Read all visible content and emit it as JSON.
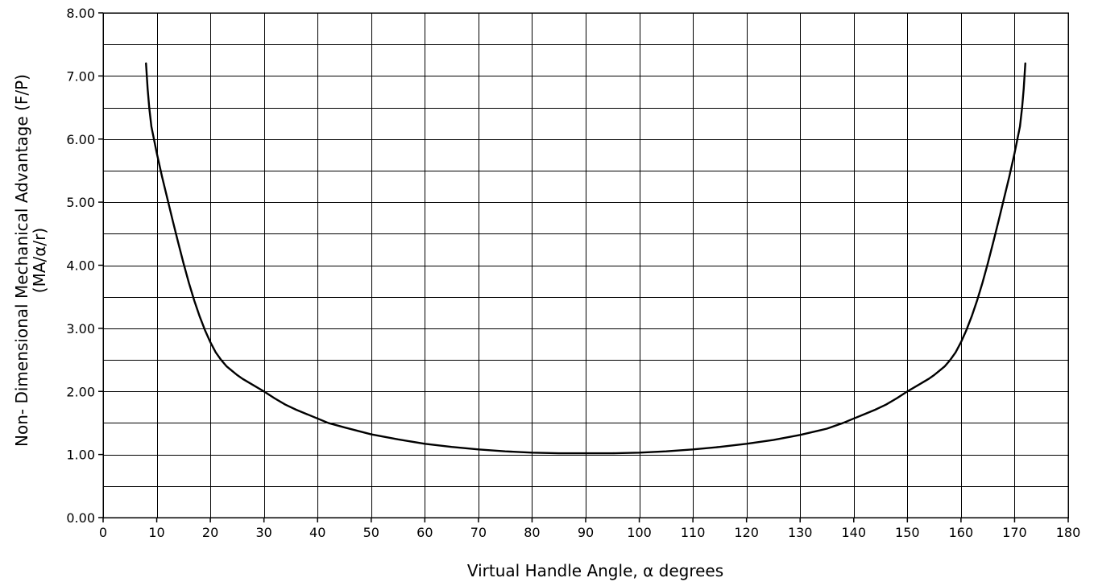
{
  "chart_data": {
    "type": "line",
    "title": "",
    "xlabel": "Virtual Handle Angle,  α   degrees",
    "ylabel_line1": "Non- Dimensional Mechanical Advantage (F/P)",
    "ylabel_line2": "(MA/α/r)",
    "xlim": [
      0,
      180
    ],
    "ylim": [
      0,
      8
    ],
    "grid": true,
    "legend": "none",
    "colors": {
      "line": "#000000",
      "grid": "#000000",
      "background": "#ffffff"
    },
    "x_ticks": [
      "0",
      "10",
      "20",
      "30",
      "40",
      "50",
      "60",
      "70",
      "80",
      "90",
      "100",
      "110",
      "120",
      "130",
      "140",
      "150",
      "160",
      "170",
      "180"
    ],
    "y_ticks": [
      "0.00",
      "1.00",
      "2.00",
      "3.00",
      "4.00",
      "5.00",
      "6.00",
      "7.00",
      "8.00"
    ],
    "series": [
      {
        "x": [
          8,
          8.3,
          8.6,
          9,
          10,
          11,
          12,
          13,
          14,
          15,
          16,
          17,
          18,
          19,
          20,
          21,
          22,
          23,
          24,
          25,
          26,
          28,
          30,
          32,
          34,
          36,
          38,
          40,
          42,
          45,
          50,
          55,
          60,
          65,
          70,
          75,
          80,
          85,
          90,
          95,
          100,
          105,
          110,
          115,
          120,
          125,
          130,
          135,
          138,
          140,
          142,
          144,
          146,
          148,
          150,
          152,
          154,
          155,
          156,
          157,
          158,
          159,
          160,
          161,
          162,
          163,
          164,
          165,
          166,
          167,
          168,
          169,
          170,
          171,
          171.4,
          171.7,
          172
        ],
        "y": [
          7.2,
          6.8,
          6.5,
          6.2,
          5.78,
          5.4,
          5.05,
          4.7,
          4.36,
          4.03,
          3.72,
          3.44,
          3.19,
          2.97,
          2.78,
          2.62,
          2.5,
          2.4,
          2.33,
          2.26,
          2.2,
          2.1,
          2.0,
          1.89,
          1.79,
          1.71,
          1.64,
          1.57,
          1.5,
          1.43,
          1.32,
          1.24,
          1.17,
          1.12,
          1.08,
          1.05,
          1.03,
          1.02,
          1.02,
          1.02,
          1.03,
          1.05,
          1.08,
          1.12,
          1.17,
          1.23,
          1.31,
          1.41,
          1.5,
          1.57,
          1.64,
          1.71,
          1.79,
          1.89,
          2.0,
          2.1,
          2.2,
          2.26,
          2.33,
          2.4,
          2.5,
          2.62,
          2.78,
          2.97,
          3.19,
          3.44,
          3.72,
          4.03,
          4.36,
          4.7,
          5.05,
          5.4,
          5.78,
          6.2,
          6.5,
          6.8,
          7.2
        ]
      }
    ]
  }
}
